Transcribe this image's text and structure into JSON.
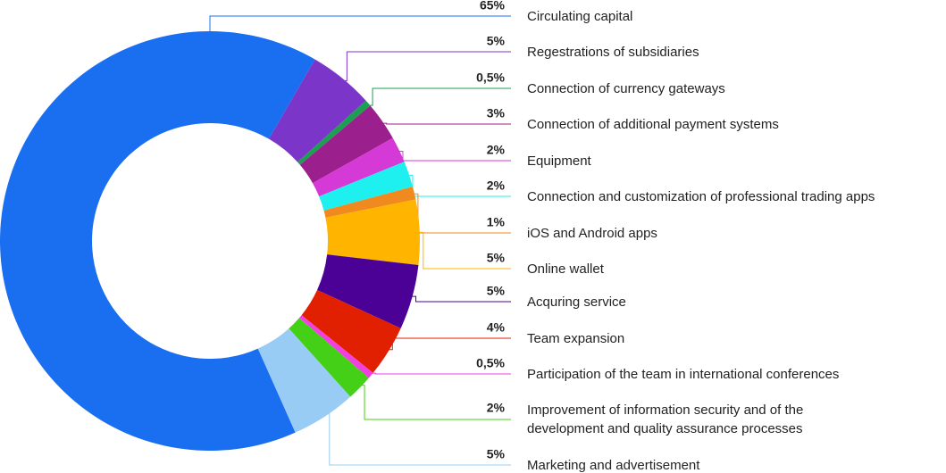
{
  "chart_data": {
    "type": "donut",
    "categories": [
      "Circulating capital",
      "Regestrations of subsidiaries",
      "Connection of currency gateways",
      "Connection of additional payment systems",
      "Equipment",
      "Connection and customization of professional trading apps",
      "iOS and Android apps",
      "Online wallet",
      "Acquring service",
      "Team expansion",
      "Participation of the team in international conferences",
      "Improvement of information security and of the development and quality assurance processes",
      "Marketing and advertisement"
    ],
    "values": [
      65,
      5,
      0.5,
      3,
      2,
      2,
      1,
      5,
      5,
      4,
      0.5,
      2,
      5
    ],
    "value_labels": [
      "65%",
      "5%",
      "0,5%",
      "3%",
      "2%",
      "2%",
      "1%",
      "5%",
      "5%",
      "4%",
      "0,5%",
      "2%",
      "5%"
    ],
    "colors": [
      "#1a6ff0",
      "#7b35c8",
      "#1aa050",
      "#9b1f8c",
      "#d63ad6",
      "#1ef0f0",
      "#f08a1e",
      "#ffb400",
      "#4b0096",
      "#e02000",
      "#f040e0",
      "#44d016",
      "#99ccf5"
    ]
  }
}
